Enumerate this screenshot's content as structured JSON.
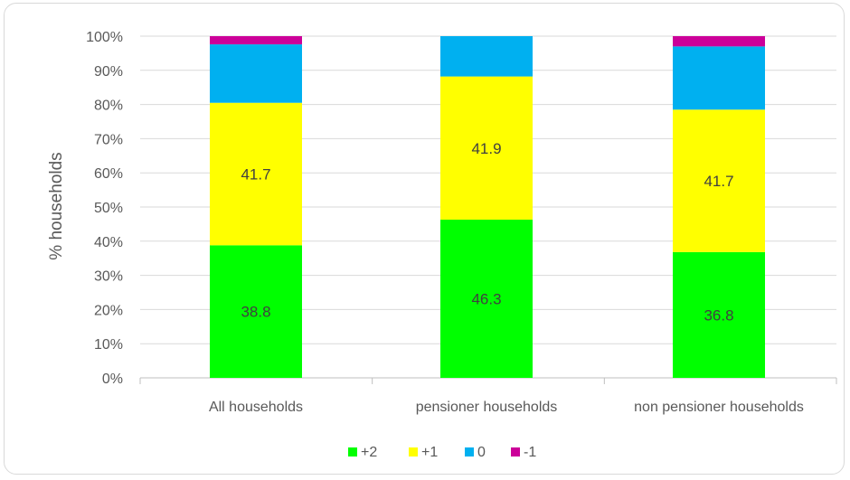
{
  "chart_data": {
    "type": "bar",
    "stacked": true,
    "percent_stacked": true,
    "title": "",
    "xlabel": "",
    "ylabel": "% households",
    "ylim": [
      0,
      100
    ],
    "y_ticks": [
      "0%",
      "10%",
      "20%",
      "30%",
      "40%",
      "50%",
      "60%",
      "70%",
      "80%",
      "90%",
      "100%"
    ],
    "grid": true,
    "legend_position": "bottom",
    "categories": [
      "All households",
      "pensioner households",
      "non pensioner households"
    ],
    "series": [
      {
        "name": "+2",
        "color": "#00ff00",
        "values": [
          38.8,
          46.3,
          36.8
        ],
        "labels": [
          "38.8",
          "46.3",
          "36.8"
        ]
      },
      {
        "name": "+1",
        "color": "#ffff00",
        "values": [
          41.7,
          41.9,
          41.7
        ],
        "labels": [
          "41.7",
          "41.9",
          "41.7"
        ]
      },
      {
        "name": "0",
        "color": "#00b0f0",
        "values": [
          17.1,
          11.8,
          18.5
        ],
        "labels": [
          "",
          "",
          ""
        ]
      },
      {
        "name": "-1",
        "color": "#cc0099",
        "values": [
          2.4,
          0,
          3.0
        ],
        "labels": [
          "",
          "",
          ""
        ]
      }
    ]
  }
}
